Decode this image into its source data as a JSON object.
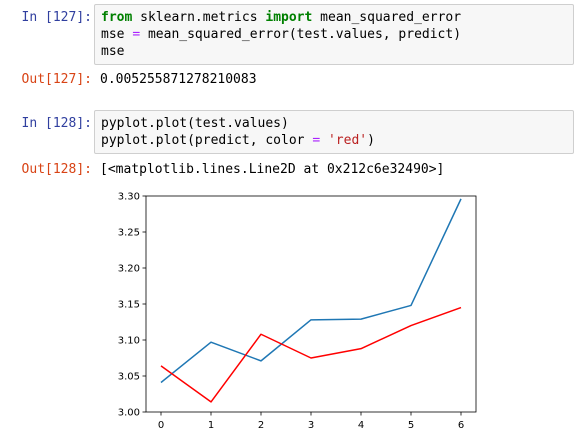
{
  "cells": [
    {
      "in_prompt": "In [127]:",
      "code_lines": [
        [
          {
            "t": "from",
            "c": "kw"
          },
          {
            "t": " sklearn.metrics ",
            "c": ""
          },
          {
            "t": "import",
            "c": "kw"
          },
          {
            "t": " mean_squared_error",
            "c": ""
          }
        ],
        [
          {
            "t": "mse ",
            "c": ""
          },
          {
            "t": "=",
            "c": "op"
          },
          {
            "t": " mean_squared_error(test.values, predict)",
            "c": ""
          }
        ],
        [
          {
            "t": "mse",
            "c": ""
          }
        ]
      ],
      "out_prompt": "Out[127]:",
      "output": "0.005255871278210083"
    },
    {
      "in_prompt": "In [128]:",
      "code_lines": [
        [
          {
            "t": "pyplot.plot(test.values)",
            "c": ""
          }
        ],
        [
          {
            "t": "pyplot.plot(predict, color ",
            "c": ""
          },
          {
            "t": "=",
            "c": "op"
          },
          {
            "t": " ",
            "c": ""
          },
          {
            "t": "'red'",
            "c": "str"
          },
          {
            "t": ")",
            "c": ""
          }
        ]
      ],
      "out_prompt": "Out[128]:",
      "output": "[<matplotlib.lines.Line2D at 0x212c6e32490>]"
    }
  ],
  "chart_data": {
    "type": "line",
    "x": [
      0,
      1,
      2,
      3,
      4,
      5,
      6
    ],
    "xticks": [
      "0",
      "1",
      "2",
      "3",
      "4",
      "5",
      "6"
    ],
    "yticks": [
      "3.00",
      "3.05",
      "3.10",
      "3.15",
      "3.20",
      "3.25",
      "3.30"
    ],
    "ylim": [
      3.0,
      3.3
    ],
    "xlim": [
      -0.3,
      6.3
    ],
    "series": [
      {
        "color": "#1f77b4",
        "values": [
          3.041,
          3.097,
          3.071,
          3.128,
          3.129,
          3.148,
          3.296
        ]
      },
      {
        "color": "#ff0000",
        "values": [
          3.064,
          3.014,
          3.108,
          3.075,
          3.088,
          3.12,
          3.145
        ]
      }
    ]
  }
}
